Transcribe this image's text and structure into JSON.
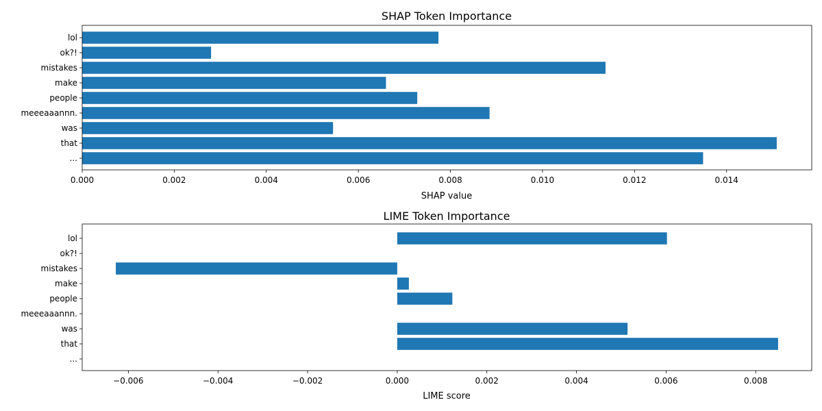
{
  "chart_data": [
    {
      "type": "bar",
      "orientation": "horizontal",
      "title": "SHAP Token Importance",
      "xlabel": "SHAP value",
      "ylabel": "",
      "categories": [
        "lol",
        "ok?!",
        "mistakes",
        "make",
        "people",
        "meeeaaannn.",
        "was",
        "that",
        "..."
      ],
      "values": [
        0.00774,
        0.0028,
        0.01137,
        0.0066,
        0.00728,
        0.00885,
        0.00545,
        0.01509,
        0.01349
      ],
      "xlim": [
        0,
        0.01585
      ],
      "xticks": [
        0.0,
        0.002,
        0.004,
        0.006,
        0.008,
        0.01,
        0.012,
        0.014
      ],
      "xtick_labels": [
        "0.000",
        "0.002",
        "0.004",
        "0.006",
        "0.008",
        "0.010",
        "0.012",
        "0.014"
      ],
      "grid": false,
      "color": "#1f77b4"
    },
    {
      "type": "bar",
      "orientation": "horizontal",
      "title": "LIME Token Importance",
      "xlabel": "LIME score",
      "ylabel": "",
      "categories": [
        "lol",
        "ok?!",
        "mistakes",
        "make",
        "people",
        "meeeaaannn.",
        "was",
        "that",
        "..."
      ],
      "values": [
        0.00602,
        0,
        -0.00628,
        0.00026,
        0.00123,
        0,
        0.00514,
        0.0085,
        0
      ],
      "xlim": [
        -0.00703,
        0.00925
      ],
      "xticks": [
        -0.006,
        -0.004,
        -0.002,
        0.0,
        0.002,
        0.004,
        0.006,
        0.008
      ],
      "xtick_labels": [
        "−0.006",
        "−0.004",
        "−0.002",
        "0.000",
        "0.002",
        "0.004",
        "0.006",
        "0.008"
      ],
      "grid": false,
      "color": "#1f77b4"
    }
  ]
}
